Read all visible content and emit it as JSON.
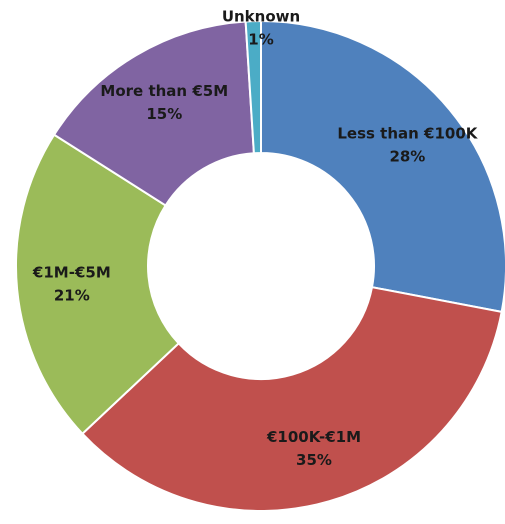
{
  "chart_data": {
    "type": "donut",
    "categories": [
      "Less than €100K",
      "€100K-€1M",
      "€1M-€5M",
      "More than €5M",
      "Unknown"
    ],
    "values": [
      28,
      35,
      21,
      15,
      1
    ],
    "value_labels": [
      "28%",
      "35%",
      "21%",
      "15%",
      "1%"
    ],
    "colors": [
      "#4f81bd",
      "#c0504d",
      "#9bbb59",
      "#8064a2",
      "#4bacc6"
    ]
  }
}
